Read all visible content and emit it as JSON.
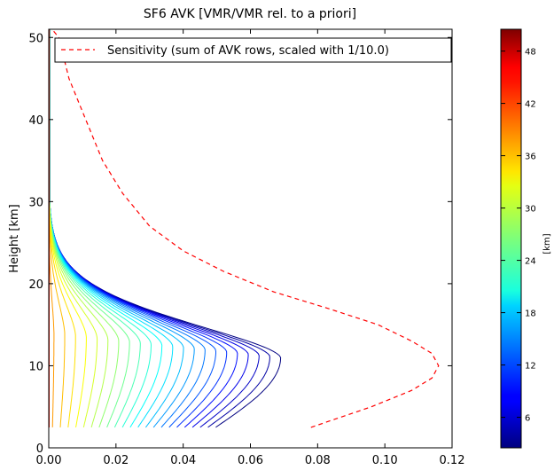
{
  "chart_data": {
    "type": "line",
    "title": "SF6 AVK [VMR/VMR rel. to a priori]",
    "xlabel": "",
    "ylabel": "Height [km]",
    "xlim": [
      0,
      0.12
    ],
    "ylim": [
      0,
      51
    ],
    "x_ticks": [
      "0.00",
      "0.02",
      "0.04",
      "0.06",
      "0.08",
      "0.10",
      "0.12"
    ],
    "y_ticks": [
      "0",
      "10",
      "20",
      "30",
      "40",
      "50"
    ],
    "grid": false,
    "legend": {
      "placement": "top",
      "entries": [
        "Sensitivity (sum of AVK rows, scaled with 1/10.0)"
      ]
    },
    "colorbar": {
      "label": "[km]",
      "range": [
        2.5,
        50.5
      ],
      "ticks": [
        "6",
        "12",
        "18",
        "24",
        "30",
        "36",
        "42",
        "48"
      ],
      "colormap": "jet"
    },
    "sensitivity": {
      "name": "Sensitivity (sum of AVK rows, scaled with 1/10.0)",
      "color": "#ff0000",
      "style": "dashed",
      "points": [
        [
          0.078,
          2.5
        ],
        [
          0.096,
          5
        ],
        [
          0.108,
          7
        ],
        [
          0.114,
          8.5
        ],
        [
          0.116,
          10
        ],
        [
          0.114,
          11.5
        ],
        [
          0.108,
          13
        ],
        [
          0.098,
          15
        ],
        [
          0.083,
          17
        ],
        [
          0.067,
          19
        ],
        [
          0.052,
          21.5
        ],
        [
          0.04,
          24
        ],
        [
          0.03,
          27
        ],
        [
          0.022,
          31
        ],
        [
          0.016,
          35
        ],
        [
          0.011,
          40
        ],
        [
          0.006,
          45
        ],
        [
          0.003,
          50
        ],
        [
          0.001,
          51
        ]
      ]
    },
    "avk_rows": {
      "count": 30,
      "altitude_range_km": [
        2.5,
        50.5
      ],
      "surface_height_km": 2.5,
      "peak_height_km": 11,
      "max_value": 0.069
    }
  }
}
